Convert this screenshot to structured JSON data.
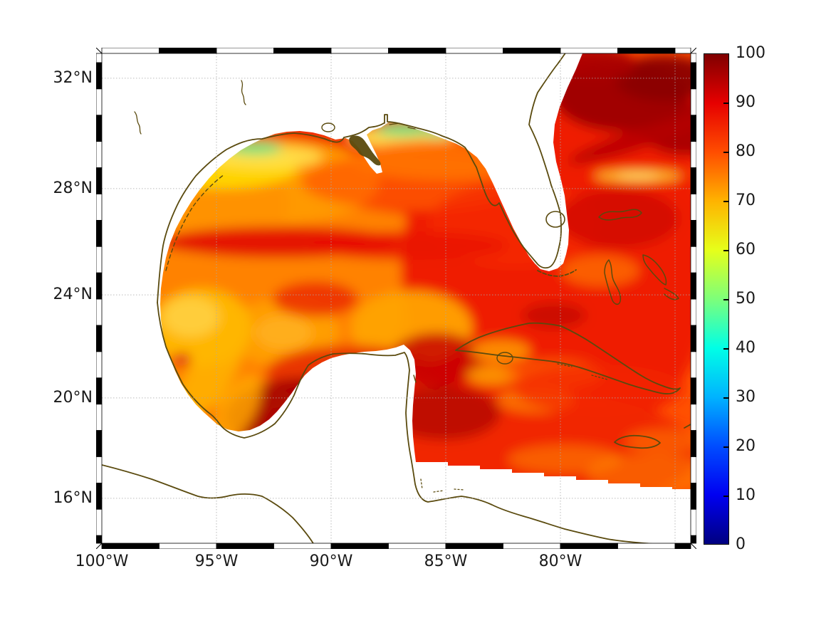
{
  "figure": {
    "background": "#ffffff",
    "description": "Filled-contour map of the Gulf of Mexico, Florida and northwest Caribbean with a jet colorbar 0-100; data over water only, land masked white, coastlines drawn in dark olive"
  },
  "map": {
    "x_axis": {
      "ticks": [
        {
          "label": "100°W",
          "lon": 100
        },
        {
          "label": "95°W",
          "lon": 95
        },
        {
          "label": "90°W",
          "lon": 90
        },
        {
          "label": "85°W",
          "lon": 85
        },
        {
          "label": "80°W",
          "lon": 80
        }
      ],
      "grid_lons": [
        95,
        90,
        85,
        80,
        75
      ]
    },
    "y_axis": {
      "ticks": [
        {
          "label": "32°N",
          "lat": 32
        },
        {
          "label": "28°N",
          "lat": 28
        },
        {
          "label": "24°N",
          "lat": 24
        },
        {
          "label": "20°N",
          "lat": 20
        },
        {
          "label": "16°N",
          "lat": 16
        }
      ],
      "grid_lats": [
        32,
        28,
        24,
        20,
        16
      ]
    }
  },
  "colorbar": {
    "min": 0,
    "max": 100,
    "tick_labels": [
      "0",
      "10",
      "20",
      "30",
      "40",
      "50",
      "60",
      "70",
      "80",
      "90",
      "100"
    ],
    "tick_values": [
      0,
      10,
      20,
      30,
      40,
      50,
      60,
      70,
      80,
      90,
      100
    ],
    "colormap": "jet",
    "stops": [
      {
        "v": 0,
        "c": "#000080"
      },
      {
        "v": 10,
        "c": "#0000f1"
      },
      {
        "v": 20,
        "c": "#004dff"
      },
      {
        "v": 30,
        "c": "#00b3ff"
      },
      {
        "v": 40,
        "c": "#00ffe6"
      },
      {
        "v": 50,
        "c": "#7dff7a"
      },
      {
        "v": 60,
        "c": "#e6ff1a"
      },
      {
        "v": 70,
        "c": "#ffb300"
      },
      {
        "v": 80,
        "c": "#ff4d00"
      },
      {
        "v": 90,
        "c": "#e60000"
      },
      {
        "v": 100,
        "c": "#800000"
      }
    ]
  },
  "colors": {
    "coastline": "#5a4a0e",
    "gridline": "#aaaaaa",
    "frame_black": "#000000",
    "frame_white": "#ffffff",
    "text": "#1a1a1a",
    "no_data": "#ffffff"
  },
  "chart_data": {
    "type": "heatmap",
    "title": "",
    "xlabel": "",
    "ylabel": "",
    "x_ticks": [
      "100°W",
      "95°W",
      "90°W",
      "85°W",
      "80°W"
    ],
    "y_ticks": [
      "16°N",
      "20°N",
      "24°N",
      "28°N",
      "32°N"
    ],
    "lon_range_deg_west": [
      100,
      74.3
    ],
    "lat_range_deg_north": [
      14.3,
      33.0
    ],
    "value_range": [
      0,
      100
    ],
    "colorbar_ticks": [
      0,
      10,
      20,
      30,
      40,
      50,
      60,
      70,
      80,
      90,
      100
    ],
    "colormap": "jet",
    "observed_field": {
      "open_gulf_typical": [
        75,
        90
      ],
      "northern_gulf_coastal_band": [
        50,
        70
      ],
      "west_gulf_yellow_patches": [
        65,
        72
      ],
      "bay_of_campeche_dark_red": [
        90,
        100
      ],
      "atlantic_ne_corner_dark_red": [
        90,
        100
      ],
      "caribbean_typical": [
        78,
        92
      ],
      "land_and_south_of_boundary": "no data (white)"
    }
  }
}
